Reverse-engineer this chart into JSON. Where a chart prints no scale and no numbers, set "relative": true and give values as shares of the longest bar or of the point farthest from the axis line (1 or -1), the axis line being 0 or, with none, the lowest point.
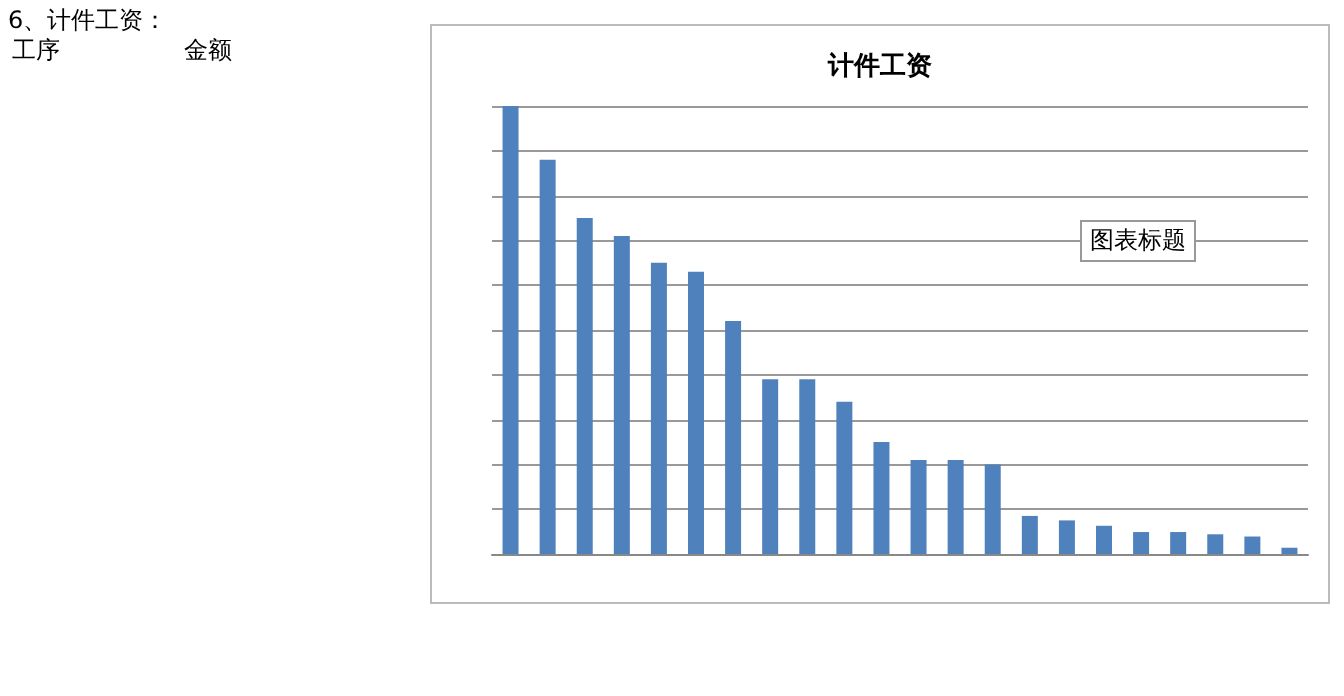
{
  "chart_data": {
    "type": "bar",
    "title": "计件工资",
    "relative": true,
    "grid": "y",
    "color": "#4f81bd",
    "categories": [
      null,
      null,
      null,
      null,
      null,
      null,
      null,
      null,
      null,
      null,
      null,
      null,
      null,
      null,
      null,
      null,
      null,
      null,
      null,
      null,
      null,
      null
    ],
    "values": [
      1,
      0.88,
      0.75,
      0.71,
      0.65,
      0.63,
      0.52,
      0.39,
      0.39,
      0.34,
      0.25,
      0.21,
      0.21,
      0.2,
      0.085,
      0.075,
      0.063,
      0.049,
      0.049,
      0.044,
      0.039,
      0.014
    ],
    "annotations": [
      "6、计件工资：",
      "工序",
      "金额",
      "图表标题"
    ]
  }
}
